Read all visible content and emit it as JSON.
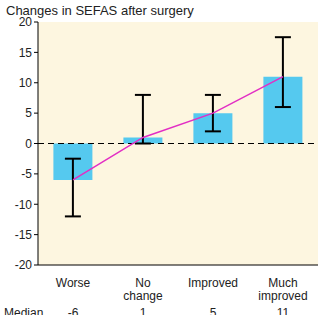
{
  "chart_data": {
    "type": "bar",
    "title": "Changes in SEFAS after surgery",
    "categories": [
      "Worse",
      "No change",
      "Improved",
      "Much improved"
    ],
    "series": [
      {
        "type": "bar",
        "color": "#55c9ef",
        "values": [
          -6,
          1,
          5,
          11
        ],
        "error_low": [
          -12,
          0,
          2,
          6
        ],
        "error_high": [
          -2.5,
          8,
          8,
          17.5
        ]
      },
      {
        "type": "line",
        "color": "#e22ec4",
        "values": [
          -6,
          1,
          5,
          11
        ]
      }
    ],
    "row_label": "Median",
    "reference_line": 0,
    "ylim": [
      -20,
      20
    ],
    "yticks": [
      -20,
      -15,
      -10,
      -5,
      0,
      5,
      10,
      15,
      20
    ],
    "grid": false
  }
}
